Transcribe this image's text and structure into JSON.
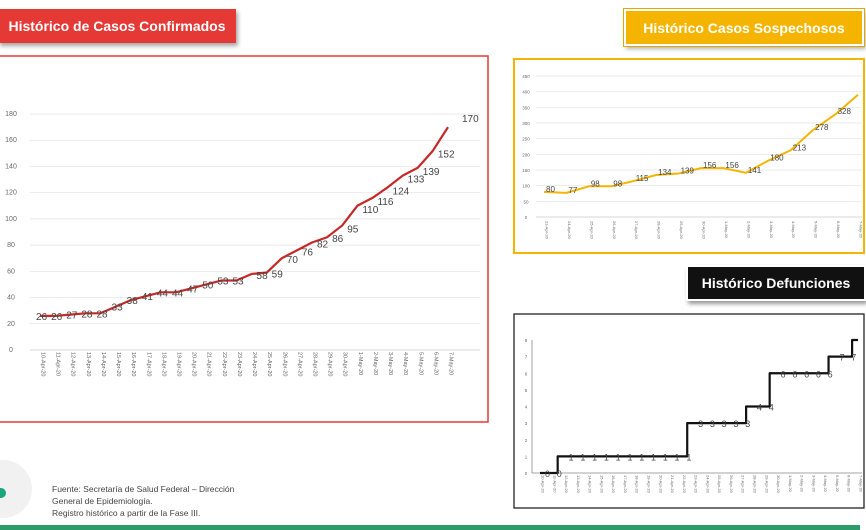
{
  "titles": {
    "confirmados": "Histórico de Casos Confirmados",
    "sospechosos": "Histórico Casos Sospechosos",
    "defunciones": "Histórico Defunciones"
  },
  "source": {
    "line1": "Fuente: Secretaría de Salud Federal – Dirección",
    "line2": "General de Epidemiología.",
    "line3": "Registro histórico a partir de la Fase III."
  },
  "colors": {
    "confirmados": "#c62828",
    "sospechosos": "#f5b400",
    "defunciones": "#111111"
  },
  "chart_data": [
    {
      "id": "confirmados",
      "type": "line",
      "title": "Histórico de Casos Confirmados",
      "ylim": [
        0,
        180
      ],
      "yticks": [
        0,
        20,
        40,
        60,
        80,
        100,
        120,
        140,
        160,
        180
      ],
      "grid": true,
      "categories": [
        "10-Apr-20",
        "11-Apr-20",
        "12-Apr-20",
        "13-Apr-20",
        "14-Apr-20",
        "15-Apr-20",
        "16-Apr-20",
        "17-Apr-20",
        "18-Apr-20",
        "19-Apr-20",
        "20-Apr-20",
        "21-Apr-20",
        "22-Apr-20",
        "23-Apr-20",
        "24-Apr-20",
        "25-Apr-20",
        "26-Apr-20",
        "27-Apr-20",
        "28-Apr-20",
        "29-Apr-20",
        "30-Apr-20",
        "1-May-20",
        "2-May-20",
        "3-May-20",
        "4-May-20",
        "5-May-20",
        "6-May-20",
        "7-May-20"
      ],
      "values": [
        26,
        26,
        27,
        28,
        28,
        33,
        38,
        41,
        44,
        44,
        47,
        50,
        53,
        53,
        58,
        59,
        70,
        76,
        82,
        86,
        95,
        110,
        116,
        124,
        133,
        139,
        152,
        170
      ],
      "labels": [
        "26",
        "26",
        "27",
        "28",
        "28",
        "33",
        "38",
        "41",
        "44",
        "44",
        "47",
        "50",
        "53",
        "53",
        "58",
        "59",
        "70",
        "76",
        "82",
        "86",
        "95",
        "110",
        "116",
        "124",
        "133",
        "139",
        "152",
        "170"
      ]
    },
    {
      "id": "sospechosos",
      "type": "line",
      "title": "Histórico Casos Sospechosos",
      "ylim": [
        0,
        450
      ],
      "yticks": [
        0,
        50,
        100,
        150,
        200,
        250,
        300,
        350,
        400,
        450
      ],
      "grid": true,
      "categories": [
        "23-Apr-20",
        "24-Apr-20",
        "25-Apr-20",
        "26-Apr-20",
        "27-Apr-20",
        "28-Apr-20",
        "29-Apr-20",
        "30-Apr-20",
        "1-May-20",
        "2-May-20",
        "3-May-20",
        "4-May-20",
        "5-May-20",
        "6-May-20",
        "7-May-20"
      ],
      "values": [
        80,
        77,
        98,
        98,
        115,
        134,
        139,
        156,
        156,
        141,
        180,
        213,
        278,
        328,
        390
      ],
      "labels": [
        "80",
        "77",
        "98",
        "98",
        "115",
        "134",
        "139",
        "156",
        "156",
        "141",
        "180",
        "213",
        "278",
        "328",
        ""
      ]
    },
    {
      "id": "defunciones",
      "type": "line",
      "step": true,
      "title": "Histórico Defunciones",
      "ylim": [
        0,
        8
      ],
      "yticks": [
        0,
        1,
        2,
        3,
        4,
        5,
        6,
        7,
        8
      ],
      "grid": false,
      "categories": [
        "10-Apr-20",
        "11-Apr-20",
        "12-Apr-20",
        "13-Apr-20",
        "14-Apr-20",
        "15-Apr-20",
        "16-Apr-20",
        "17-Apr-20",
        "18-Apr-20",
        "19-Apr-20",
        "20-Apr-20",
        "21-Apr-20",
        "22-Apr-20",
        "23-Apr-20",
        "24-Apr-20",
        "25-Apr-20",
        "26-Apr-20",
        "27-Apr-20",
        "28-Apr-20",
        "29-Apr-20",
        "30-Apr-20",
        "1-May-20",
        "2-May-20",
        "3-May-20",
        "4-May-20",
        "5-May-20",
        "6-May-20",
        "7-May-20"
      ],
      "values": [
        0,
        0,
        1,
        1,
        1,
        1,
        1,
        1,
        1,
        1,
        1,
        1,
        1,
        3,
        3,
        3,
        3,
        3,
        4,
        4,
        6,
        6,
        6,
        6,
        6,
        7,
        7,
        8
      ],
      "labels": [
        "0",
        "0",
        "1",
        "1",
        "1",
        "1",
        "1",
        "1",
        "1",
        "1",
        "1",
        "1",
        "1",
        "3",
        "3",
        "3",
        "3",
        "3",
        "4",
        "4",
        "6",
        "6",
        "6",
        "6",
        "6",
        "7",
        "7",
        ""
      ]
    }
  ]
}
